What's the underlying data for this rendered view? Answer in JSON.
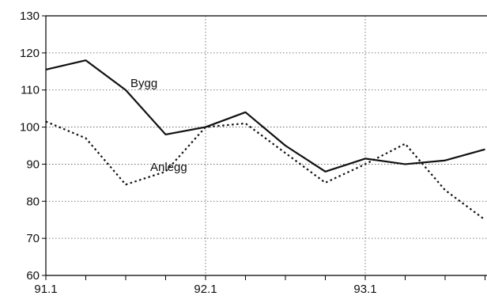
{
  "chart_data": {
    "type": "line",
    "x": [
      0,
      1,
      2,
      3,
      4,
      5,
      6,
      7,
      8,
      9,
      10,
      11
    ],
    "xtick_labels": [
      "91.1",
      "92.1",
      "93.1"
    ],
    "xtick_label_positions": [
      0,
      4,
      8
    ],
    "ylim": [
      60,
      130
    ],
    "yticks": [
      60,
      70,
      80,
      90,
      100,
      110,
      120,
      130
    ],
    "grid": true,
    "series": [
      {
        "name": "Bygg",
        "style": "solid",
        "color": "#111111",
        "values": [
          115.5,
          118,
          110,
          98,
          100,
          104,
          95,
          88,
          91.5,
          90,
          91,
          94
        ]
      },
      {
        "name": "Anlegg",
        "style": "dotted",
        "color": "#111111",
        "values": [
          101.5,
          97,
          84.5,
          88,
          100,
          101,
          93,
          85,
          90,
          95.5,
          83,
          75
        ]
      }
    ]
  }
}
